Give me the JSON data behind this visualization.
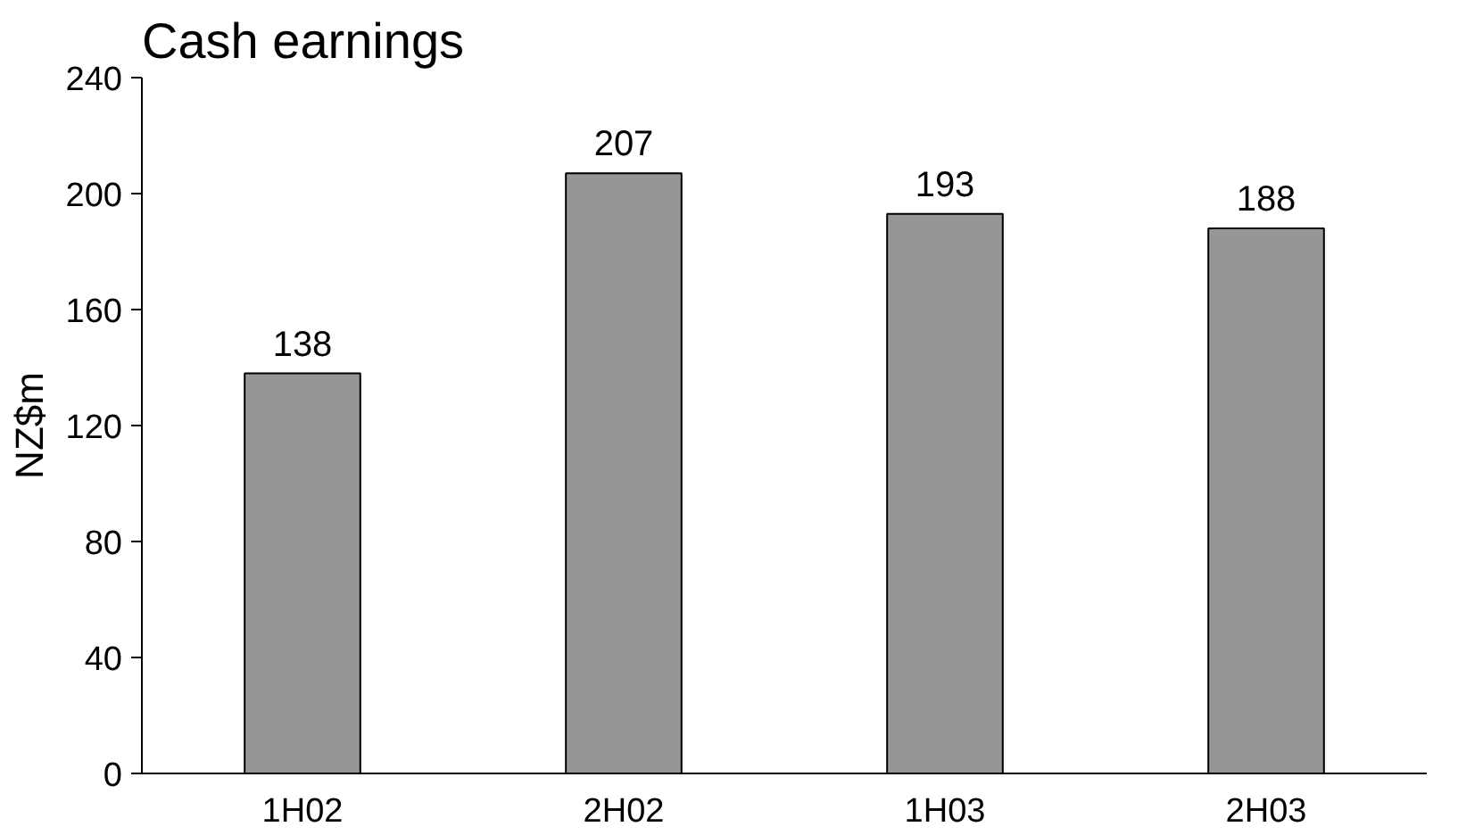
{
  "chart_data": {
    "type": "bar",
    "title": "Cash earnings",
    "ylabel": "NZ$m",
    "categories": [
      "1H02",
      "2H02",
      "1H03",
      "2H03"
    ],
    "values": [
      138,
      207,
      193,
      188
    ],
    "color": "#969696",
    "ylim": [
      0,
      240
    ],
    "yticks": [
      0,
      40,
      80,
      120,
      160,
      200,
      240
    ],
    "data_labels": true,
    "grid": false
  }
}
